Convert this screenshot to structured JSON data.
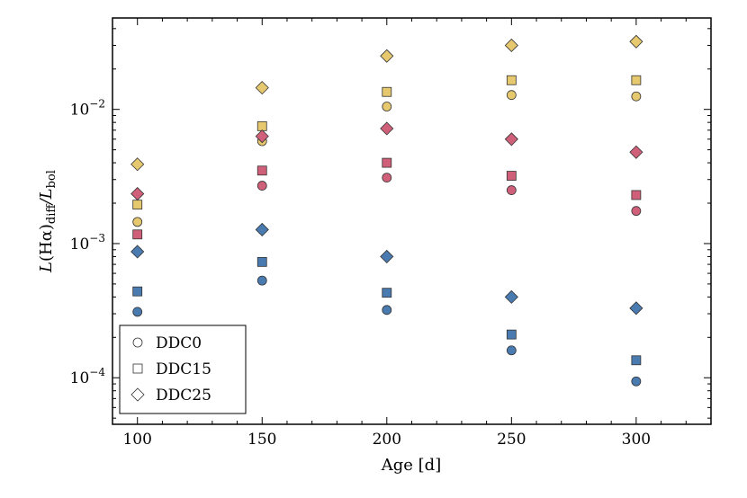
{
  "chart_data": {
    "type": "scatter",
    "title": "",
    "xlabel": "Age [d]",
    "ylabel_parts": {
      "main1": "L",
      "paren_open": "(Hα)",
      "sub1": "diff",
      "slash": "/L",
      "sub2": "bol"
    },
    "xlim": [
      90,
      330
    ],
    "ylim": [
      4.5e-05,
      0.048
    ],
    "yscale": "log",
    "x_ticks": [
      {
        "value": 100,
        "label": "100"
      },
      {
        "value": 150,
        "label": "150"
      },
      {
        "value": 200,
        "label": "200"
      },
      {
        "value": 250,
        "label": "250"
      },
      {
        "value": 300,
        "label": "300"
      }
    ],
    "y_ticks": [
      {
        "value": 0.0001,
        "base": "10",
        "exp": "−4"
      },
      {
        "value": 0.001,
        "base": "10",
        "exp": "−3"
      },
      {
        "value": 0.01,
        "base": "10",
        "exp": "−2"
      }
    ],
    "x": [
      100,
      150,
      200,
      250,
      300
    ],
    "colors": {
      "blue": "#4a7bb0",
      "red": "#d0607a",
      "yellow": "#e6c86e",
      "edge": "#333333"
    },
    "series": [
      {
        "name": "DDC0 blue",
        "model": "DDC0",
        "marker": "circle",
        "color": "blue",
        "values": [
          0.00031,
          0.00053,
          0.00032,
          0.00016,
          9.4e-05
        ]
      },
      {
        "name": "DDC0 red",
        "model": "DDC0",
        "marker": "circle",
        "color": "red",
        "values": [
          0.00087,
          0.0027,
          0.0031,
          0.0025,
          0.00175
        ]
      },
      {
        "name": "DDC0 yellow",
        "model": "DDC0",
        "marker": "circle",
        "color": "yellow",
        "values": [
          0.00145,
          0.0058,
          0.0105,
          0.0128,
          0.0125
        ]
      },
      {
        "name": "DDC15 blue",
        "model": "DDC15",
        "marker": "square",
        "color": "blue",
        "values": [
          0.00044,
          0.00073,
          0.00043,
          0.00021,
          0.000135
        ]
      },
      {
        "name": "DDC15 red",
        "model": "DDC15",
        "marker": "square",
        "color": "red",
        "values": [
          0.00117,
          0.0035,
          0.004,
          0.0032,
          0.0023
        ]
      },
      {
        "name": "DDC15 yellow",
        "model": "DDC15",
        "marker": "square",
        "color": "yellow",
        "values": [
          0.00195,
          0.0075,
          0.0135,
          0.0165,
          0.0165
        ]
      },
      {
        "name": "DDC25 blue",
        "model": "DDC25",
        "marker": "diamond",
        "color": "blue",
        "values": [
          0.00087,
          0.00127,
          0.0008,
          0.0004,
          0.00033
        ]
      },
      {
        "name": "DDC25 red",
        "model": "DDC25",
        "marker": "diamond",
        "color": "red",
        "values": [
          0.00235,
          0.0063,
          0.0072,
          0.006,
          0.0048
        ]
      },
      {
        "name": "DDC25 yellow",
        "model": "DDC25",
        "marker": "diamond",
        "color": "yellow",
        "values": [
          0.0039,
          0.0145,
          0.025,
          0.03,
          0.032
        ]
      }
    ],
    "legend": {
      "position": "lower-left",
      "entries": [
        {
          "label": "DDC0",
          "marker": "circle"
        },
        {
          "label": "DDC15",
          "marker": "square"
        },
        {
          "label": "DDC25",
          "marker": "diamond"
        }
      ]
    }
  }
}
